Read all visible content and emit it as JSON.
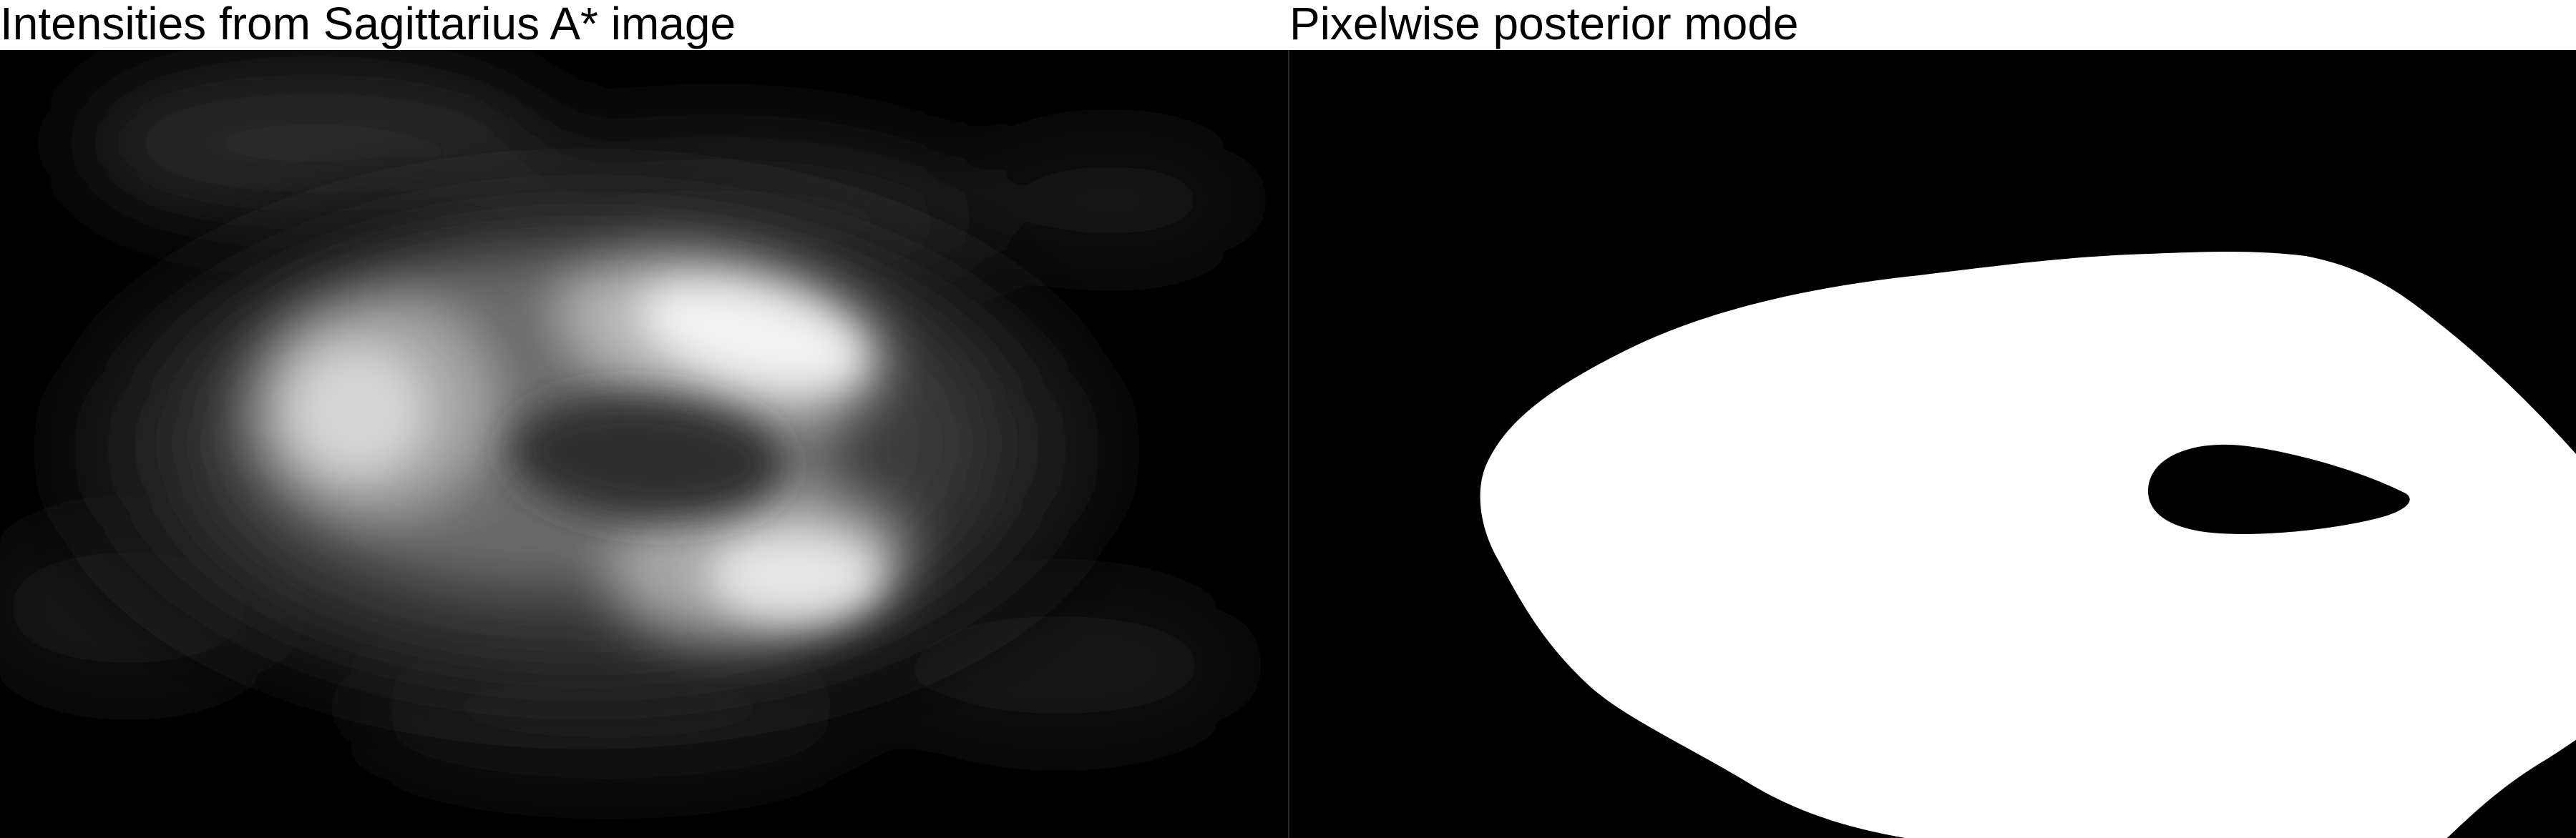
{
  "panels": [
    {
      "title": "Intensities from Sagittarius A* image",
      "content": "grayscale-intensity-image"
    },
    {
      "title": "Pixelwise posterior mode",
      "content": "binary-mask-image"
    }
  ],
  "colors": {
    "background": "#ffffff",
    "image_background": "#000000",
    "mask_foreground": "#ffffff"
  }
}
